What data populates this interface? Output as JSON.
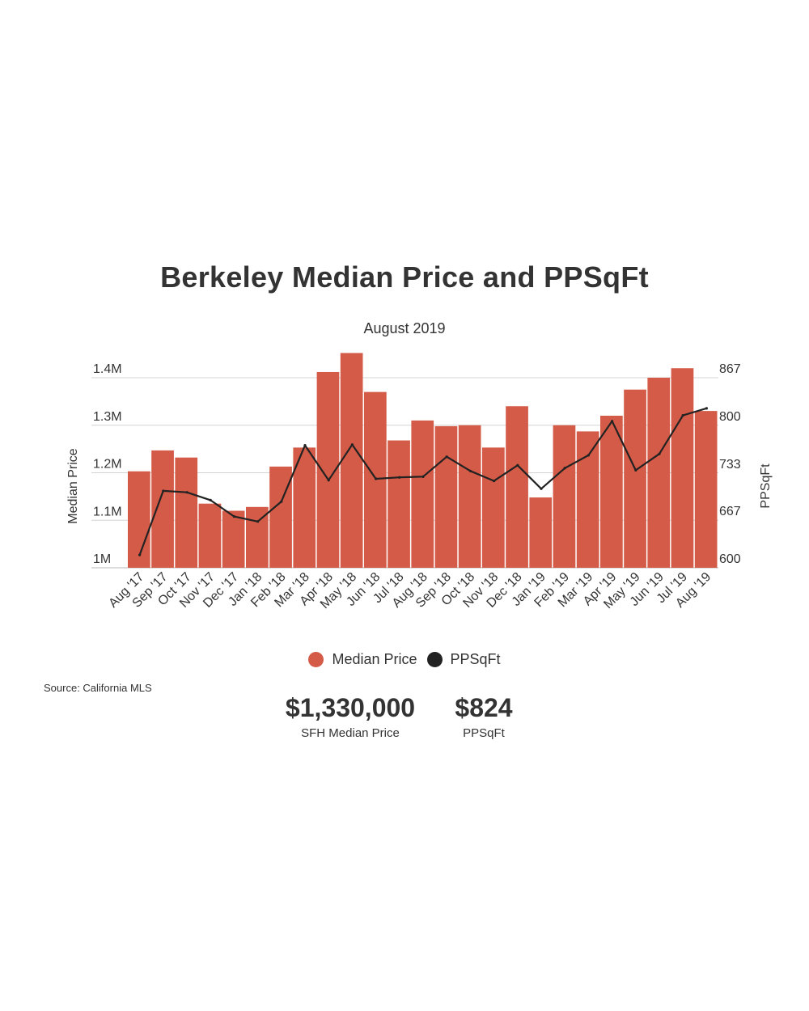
{
  "header": {
    "title": "Berkeley Median Price and PPSqFt",
    "subtitle": "August 2019"
  },
  "source": "Source:  California MLS",
  "kpis": [
    {
      "value": "$1,330,000",
      "label": "SFH Median Price"
    },
    {
      "value": "$824",
      "label": "PPSqFt"
    }
  ],
  "legend": [
    {
      "label": "Median Price",
      "color": "#d45b47"
    },
    {
      "label": "PPSqFt",
      "color": "#222222"
    }
  ],
  "chart_data": {
    "type": "bar",
    "title": "Berkeley Median Price and PPSqFt",
    "subtitle": "August 2019",
    "categories": [
      "Aug '17",
      "Sep '17",
      "Oct '17",
      "Nov '17",
      "Dec '17",
      "Jan '18",
      "Feb '18",
      "Mar '18",
      "Apr '18",
      "May '18",
      "Jun '18",
      "Jul '18",
      "Aug '18",
      "Sep '18",
      "Oct '18",
      "Nov '18",
      "Dec '18",
      "Jan '19",
      "Feb '19",
      "Mar '19",
      "Apr '19",
      "May '19",
      "Jun '19",
      "Jul '19",
      "Aug '19"
    ],
    "ylabel": "Median Price",
    "y2label": "PPSqFt",
    "ylim": [
      1000000,
      1433333
    ],
    "y2lim": [
      600,
      867
    ],
    "y_ticks": [
      {
        "value": 1000000,
        "label": "1M"
      },
      {
        "value": 1100000,
        "label": "1.1M"
      },
      {
        "value": 1200000,
        "label": "1.2M"
      },
      {
        "value": 1300000,
        "label": "1.3M"
      },
      {
        "value": 1400000,
        "label": "1.4M"
      }
    ],
    "y2_ticks": [
      {
        "value": 600,
        "label": "600"
      },
      {
        "value": 667,
        "label": "667"
      },
      {
        "value": 733,
        "label": "733"
      },
      {
        "value": 800,
        "label": "800"
      },
      {
        "value": 867,
        "label": "867"
      }
    ],
    "grid": true,
    "legend_position": "bottom",
    "series": [
      {
        "name": "Median Price",
        "type": "bar",
        "axis": "left",
        "color": "#d45b47",
        "values": [
          1203000,
          1247000,
          1232000,
          1135000,
          1120000,
          1128000,
          1213000,
          1253000,
          1412000,
          1452000,
          1370000,
          1268000,
          1310000,
          1298000,
          1300000,
          1253000,
          1340000,
          1148000,
          1300000,
          1287000,
          1320000,
          1375000,
          1400000,
          1420000,
          1330000
        ]
      },
      {
        "name": "PPSqFt",
        "type": "line",
        "axis": "right",
        "color": "#222222",
        "values": [
          618,
          708,
          706,
          695,
          672,
          665,
          693,
          772,
          723,
          773,
          725,
          727,
          728,
          756,
          736,
          722,
          744,
          711,
          740,
          758,
          806,
          737,
          760,
          814,
          824
        ]
      }
    ]
  }
}
